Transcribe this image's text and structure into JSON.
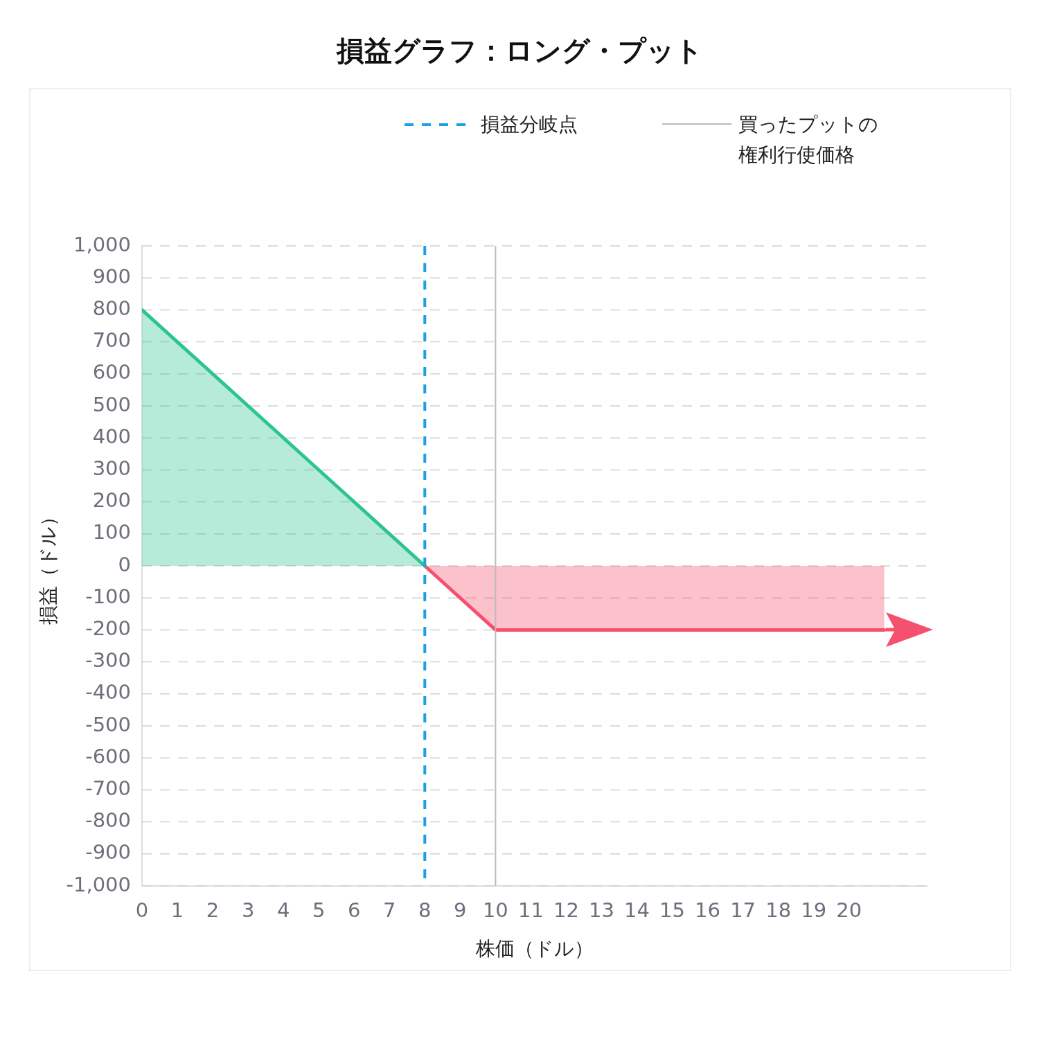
{
  "chart_data": {
    "type": "area",
    "title": "損益グラフ：ロング・プット",
    "xlabel": "株価（ドル）",
    "ylabel": "損益（ドル）",
    "series": [
      {
        "color": "#2ec491",
        "x": [
          0,
          8
        ],
        "values": [
          800,
          0
        ]
      },
      {
        "color": "#f5506e",
        "x": [
          8,
          10,
          21
        ],
        "values": [
          0,
          -200,
          -200
        ]
      }
    ],
    "xlim": [
      0,
      22.2
    ],
    "xticks": [
      0,
      1,
      2,
      3,
      4,
      5,
      6,
      7,
      8,
      9,
      10,
      11,
      12,
      13,
      14,
      15,
      16,
      17,
      18,
      19,
      20
    ],
    "ylim": [
      -1000,
      1000
    ],
    "yticks": [
      {
        "value": -1000,
        "label": "-1,000"
      },
      -900,
      -800,
      -700,
      -600,
      -500,
      -400,
      -300,
      -200,
      -100,
      0,
      100,
      200,
      300,
      400,
      500,
      600,
      700,
      800,
      900,
      {
        "value": 1000,
        "label": "1,000"
      }
    ],
    "ref_lines": [
      {
        "axis": "x",
        "value": 8,
        "label": "損益分岐点",
        "color": "#1ba1e2",
        "line_style": "dashed"
      },
      {
        "axis": "x",
        "value": 10,
        "label": "買ったプットの権利行使価格",
        "color": "#bbbbbb",
        "line_style": "solid"
      }
    ],
    "grid": "y",
    "legend": "top",
    "marker": "none"
  }
}
